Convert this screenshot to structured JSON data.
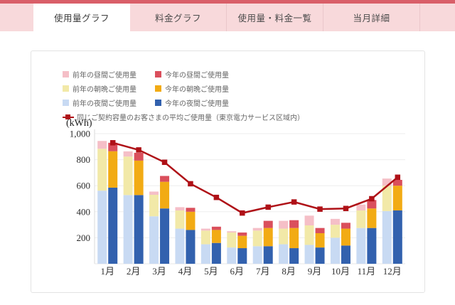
{
  "tabs": {
    "items": [
      {
        "label": "使用量グラフ",
        "active": true
      },
      {
        "label": "料金グラフ",
        "active": false
      },
      {
        "label": "使用量・料金一覧",
        "active": false
      },
      {
        "label": "当月詳細",
        "active": false
      }
    ]
  },
  "legend": {
    "items": [
      {
        "label": "前年の昼間ご使用量",
        "color": "#f5bfc7"
      },
      {
        "label": "今年の昼間ご使用量",
        "color": "#da4f5c"
      },
      {
        "label": "前年の朝晩ご使用量",
        "color": "#f2e9a8"
      },
      {
        "label": "今年の朝晩ご使用量",
        "color": "#f2ab14"
      },
      {
        "label": "前年の夜間ご使用量",
        "color": "#c8daf3"
      },
      {
        "label": "今年の夜間ご使用量",
        "color": "#3261ae"
      }
    ],
    "line_item": {
      "label": "同じご契約容量のお客さまの平均ご使用量（東京電力サービス区域内）",
      "color": "#af1117"
    }
  },
  "chart": {
    "unit_label": "(kWh)"
  },
  "chart_data": {
    "type": "bar",
    "subtype": "stacked-grouped-with-line",
    "title": "使用量グラフ",
    "ylabel": "kWh",
    "ylim": [
      0,
      1050
    ],
    "grid": true,
    "categories": [
      "1月",
      "2月",
      "3月",
      "4月",
      "5月",
      "6月",
      "7月",
      "8月",
      "9月",
      "10月",
      "11月",
      "12月"
    ],
    "yticks": [
      {
        "value": 200,
        "label": "200"
      },
      {
        "value": 400,
        "label": "400"
      },
      {
        "value": 600,
        "label": "600"
      },
      {
        "value": 800,
        "label": "800"
      },
      {
        "value": 1000,
        "label": "1,000"
      }
    ],
    "series": [
      {
        "name": "前年の夜間ご使用量",
        "group": "prev",
        "color": "#c8daf3",
        "values": [
          562,
          528,
          365,
          270,
          150,
          125,
          135,
          150,
          145,
          200,
          275,
          405
        ]
      },
      {
        "name": "前年の朝晩ご使用量",
        "group": "prev",
        "color": "#f2e9a8",
        "values": [
          322,
          296,
          165,
          140,
          105,
          115,
          120,
          120,
          150,
          100,
          135,
          195
        ]
      },
      {
        "name": "前年の昼間ご使用量",
        "group": "prev",
        "color": "#f5bfc7",
        "values": [
          60,
          40,
          25,
          25,
          15,
          10,
          20,
          60,
          75,
          45,
          45,
          55
        ]
      },
      {
        "name": "今年の夜間ご使用量",
        "group": "curr",
        "color": "#3261ae",
        "values": [
          585,
          528,
          425,
          260,
          160,
          120,
          135,
          120,
          125,
          140,
          275,
          410
        ]
      },
      {
        "name": "今年の朝晩ご使用量",
        "group": "curr",
        "color": "#f2ab14",
        "values": [
          280,
          265,
          205,
          140,
          100,
          95,
          140,
          155,
          110,
          130,
          150,
          190
        ]
      },
      {
        "name": "今年の昼間ご使用量",
        "group": "curr",
        "color": "#da4f5c",
        "values": [
          65,
          60,
          45,
          30,
          25,
          25,
          55,
          60,
          40,
          45,
          65,
          45
        ]
      }
    ],
    "line": {
      "name": "同じご契約容量のお客さまの平均ご使用量（東京電力サービス区域内）",
      "color": "#af1117",
      "values": [
        930,
        875,
        780,
        615,
        510,
        390,
        435,
        475,
        420,
        425,
        500,
        665
      ]
    },
    "legend_position": "top-left"
  }
}
